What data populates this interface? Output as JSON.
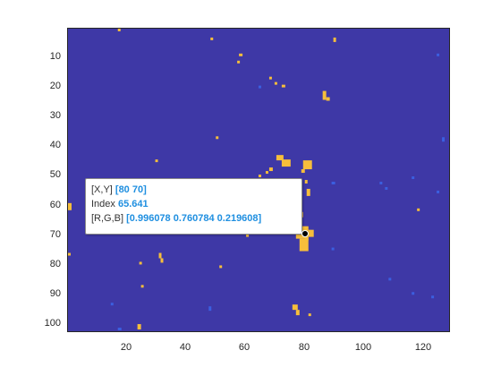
{
  "figure": {
    "colors": {
      "background": "#3e38a6",
      "foreground": "#f6be3b",
      "secondary": "#3b5fe0",
      "tip_value": "#1f8fe0"
    }
  },
  "axes": {
    "xticks": [
      "20",
      "40",
      "60",
      "80",
      "100",
      "120"
    ],
    "yticks": [
      "10",
      "20",
      "30",
      "40",
      "50",
      "60",
      "70",
      "80",
      "90",
      "100"
    ]
  },
  "datatip": {
    "row1_label": "[X,Y]",
    "row1_value": "[80 70]",
    "row2_label": "Index",
    "row2_value": "65.641",
    "row3_label": "[R,G,B]",
    "row3_value": "[0.996078 0.760784 0.219608]"
  }
}
